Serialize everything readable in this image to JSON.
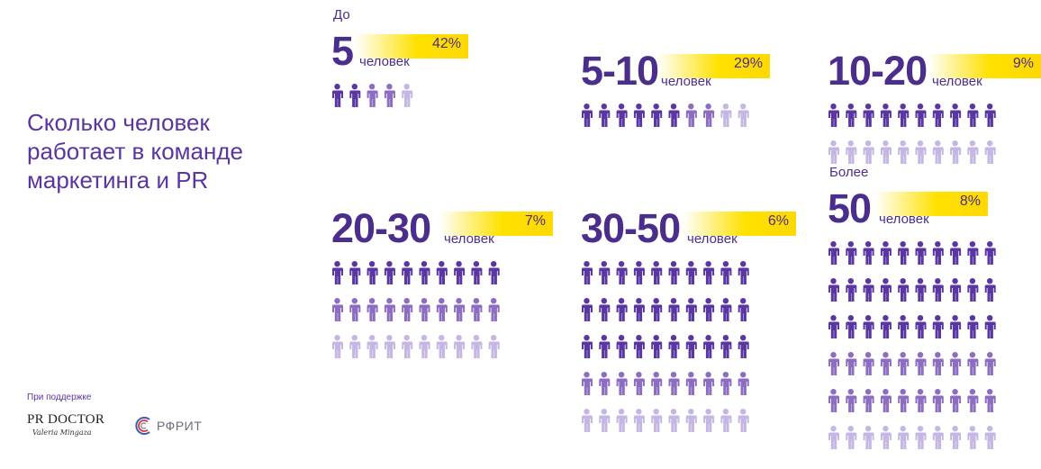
{
  "title_lines": [
    "Сколько человек",
    "работает в команде",
    "маркетинга и PR"
  ],
  "support": {
    "label": "При поддержке",
    "logo1_main": "PR DOCTOR",
    "logo1_sig": "Valeria Mingaza",
    "logo2": "РФРИТ"
  },
  "colors": {
    "purple_dark": "#5a36a3",
    "purple_mid": "#8c6dc1",
    "purple_light": "#c5b6e4",
    "highlight": "#ffe100"
  },
  "chart_data": {
    "type": "pictogram",
    "unit": "человек",
    "categories": [
      {
        "prefix": "До",
        "label": "5",
        "percent": "42%",
        "value": 42,
        "icon_rows": [
          5
        ]
      },
      {
        "prefix": "",
        "label": "5-10",
        "percent": "29%",
        "value": 29,
        "icon_rows": [
          10
        ]
      },
      {
        "prefix": "",
        "label": "10-20",
        "percent": "9%",
        "value": 9,
        "icon_rows": [
          10,
          10
        ]
      },
      {
        "prefix": "",
        "label": "20-30",
        "percent": "7%",
        "value": 7,
        "icon_rows": [
          10,
          10,
          10
        ]
      },
      {
        "prefix": "",
        "label": "30-50",
        "percent": "6%",
        "value": 6,
        "icon_rows": [
          10,
          10,
          10,
          10,
          10
        ]
      },
      {
        "prefix": "Более",
        "label": "50",
        "percent": "8%",
        "value": 8,
        "icon_rows": [
          10,
          10,
          10,
          10,
          10,
          10
        ]
      }
    ]
  }
}
